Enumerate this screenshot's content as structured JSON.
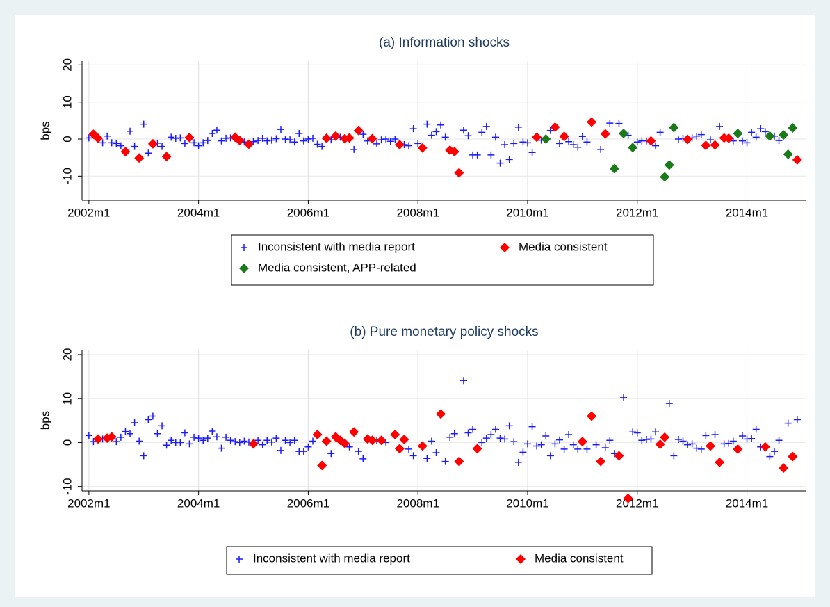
{
  "chart_data": [
    {
      "type": "scatter",
      "title": "(a) Information shocks",
      "y_label": "bps",
      "xlim": [
        502.5,
        661
      ],
      "ylim": [
        -16.5,
        21
      ],
      "xticks": [
        {
          "value": 504,
          "label": "2002m1"
        },
        {
          "value": 528,
          "label": "2004m1"
        },
        {
          "value": 552,
          "label": "2006m1"
        },
        {
          "value": 576,
          "label": "2008m1"
        },
        {
          "value": 600,
          "label": "2010m1"
        },
        {
          "value": 624,
          "label": "2012m1"
        },
        {
          "value": 648,
          "label": "2014m1"
        }
      ],
      "yticks": [
        -10,
        0,
        10,
        20
      ],
      "grid": true,
      "series": [
        {
          "name": "Inconsistent with media report",
          "color": "#1a1aff",
          "marker": "plus",
          "x": [
            504,
            507,
            508,
            509,
            510,
            511,
            513,
            514,
            516,
            517,
            519,
            520,
            522,
            523,
            524,
            525,
            527,
            528,
            529,
            530,
            531,
            532,
            533,
            534,
            535,
            538,
            540,
            541,
            542,
            543,
            544,
            545,
            546,
            547,
            548,
            549,
            550,
            551,
            552,
            553,
            554,
            555,
            557,
            559,
            562,
            564,
            565,
            567,
            568,
            569,
            570,
            571,
            573,
            574,
            575,
            576,
            578,
            579,
            580,
            581,
            582,
            586,
            587,
            588,
            589,
            590,
            591,
            592,
            593,
            594,
            595,
            596,
            597,
            598,
            599,
            600,
            601,
            603,
            605,
            607,
            609,
            610,
            611,
            612,
            613,
            616,
            618,
            620,
            622,
            624,
            625,
            626,
            628,
            629,
            633,
            634,
            636,
            637,
            638,
            640,
            642,
            645,
            647,
            648,
            649,
            650,
            651,
            652,
            654,
            655
          ],
          "values": [
            0.3,
            -1,
            0.8,
            -1,
            -1.2,
            -1.8,
            2.1,
            -2,
            4,
            -3.8,
            -1.1,
            -2,
            0.5,
            0.2,
            0.3,
            -1.2,
            -1,
            -1.8,
            -1,
            -0.4,
            1.5,
            2.4,
            -0.5,
            0.2,
            0.3,
            -0.8,
            -0.7,
            -0.4,
            0.2,
            -0.5,
            -0.3,
            0.1,
            2.6,
            0,
            -0.2,
            -0.8,
            1.5,
            -0.5,
            0,
            0.2,
            -1.4,
            -2,
            -0.2,
            0.5,
            -2.8,
            1.3,
            -0.5,
            -1.3,
            -0.2,
            0,
            -0.6,
            0,
            -1.5,
            -1.8,
            2.8,
            -1.2,
            4,
            1,
            2,
            3.8,
            0.5,
            2.4,
            0.9,
            -4.3,
            -4.3,
            1.8,
            3.4,
            -4.3,
            0.5,
            -6.5,
            -1.5,
            -5.5,
            -1.2,
            3.2,
            -0.8,
            -1,
            -3.6,
            -0.3,
            2.3,
            -1.2,
            -0.7,
            -1.5,
            -2.2,
            0.7,
            -0.8,
            -2.8,
            4.3,
            4.2,
            1,
            -0.8,
            -0.5,
            -0.5,
            -1.8,
            1.8,
            0,
            0.2,
            0.3,
            0.8,
            1.2,
            -0.2,
            3.4,
            -0.5,
            -0.5,
            -1,
            1.8,
            0.5,
            2.8,
            2,
            0.8,
            -0.4
          ]
        },
        {
          "name": "Media consistent",
          "color": "#ff0000",
          "marker": "diamond",
          "x": [
            505,
            506,
            512,
            515,
            518,
            521,
            526,
            536,
            537,
            539,
            556,
            558,
            560,
            561,
            563,
            566,
            572,
            577,
            583,
            584,
            585,
            602,
            606,
            608,
            614,
            617,
            627,
            635,
            639,
            641,
            643,
            644,
            659
          ],
          "values": [
            1.3,
            0.2,
            -3.4,
            -5.1,
            -1.3,
            -4.7,
            0.4,
            0.5,
            -0.4,
            -1.4,
            0.2,
            0.8,
            0.1,
            0.3,
            2.3,
            0.1,
            -1.5,
            -2.4,
            -3,
            -3.4,
            -9.1,
            0.5,
            3.2,
            0.7,
            4.6,
            1.4,
            -0.5,
            -0.1,
            -1.7,
            -1.6,
            0.3,
            0.2,
            -5.6
          ]
        },
        {
          "name": "Media consistent, APP-related",
          "color": "#1a7a1a",
          "marker": "diamond",
          "x": [
            604,
            619,
            621,
            623,
            630,
            631,
            632,
            646,
            653,
            656,
            657,
            658
          ],
          "values": [
            0,
            -8,
            1.5,
            -2.3,
            -10.2,
            -7,
            3.1,
            1.5,
            0.8,
            1.1,
            -4.1,
            3
          ]
        }
      ]
    },
    {
      "type": "scatter",
      "title": "(b) Pure monetary policy shocks",
      "y_label": "bps",
      "xlim": [
        502.5,
        661
      ],
      "ylim": [
        -11,
        21.1
      ],
      "xticks": [
        {
          "value": 504,
          "label": "2002m1"
        },
        {
          "value": 528,
          "label": "2004m1"
        },
        {
          "value": 552,
          "label": "2006m1"
        },
        {
          "value": 576,
          "label": "2008m1"
        },
        {
          "value": 600,
          "label": "2010m1"
        },
        {
          "value": 624,
          "label": "2012m1"
        },
        {
          "value": 648,
          "label": "2014m1"
        }
      ],
      "yticks": [
        -10,
        0,
        10,
        20
      ],
      "grid": true,
      "series": [
        {
          "name": "Inconsistent with media report",
          "color": "#1a1aff",
          "marker": "plus",
          "x": [
            504,
            505,
            507,
            510,
            511,
            512,
            513,
            514,
            515,
            516,
            517,
            518,
            519,
            520,
            521,
            522,
            523,
            524,
            525,
            526,
            527,
            528,
            529,
            530,
            531,
            532,
            533,
            534,
            535,
            536,
            537,
            538,
            539,
            541,
            542,
            543,
            544,
            545,
            546,
            547,
            548,
            549,
            550,
            551,
            552,
            553,
            557,
            561,
            563,
            564,
            567,
            569,
            574,
            575,
            578,
            579,
            580,
            582,
            583,
            584,
            586,
            587,
            588,
            590,
            591,
            592,
            593,
            594,
            595,
            596,
            597,
            598,
            599,
            600,
            601,
            602,
            603,
            604,
            605,
            606,
            607,
            608,
            609,
            610,
            611,
            613,
            615,
            617,
            618,
            619,
            621,
            623,
            624,
            625,
            626,
            627,
            628,
            631,
            632,
            633,
            634,
            635,
            636,
            637,
            638,
            639,
            641,
            643,
            644,
            645,
            647,
            648,
            649,
            650,
            651,
            653,
            654,
            655,
            657,
            659
          ],
          "values": [
            1.6,
            0.2,
            0.8,
            0.2,
            1.2,
            2.5,
            2,
            4.5,
            0.3,
            -3,
            5.2,
            6,
            2,
            3.8,
            -0.6,
            0.5,
            0,
            0,
            2.2,
            -0.3,
            1.2,
            1,
            0.5,
            1,
            2.6,
            1.3,
            -1.3,
            1.2,
            0.5,
            0.2,
            0,
            0.3,
            0.1,
            0.5,
            -0.5,
            0.5,
            0.1,
            1,
            -1.8,
            0.5,
            0,
            0.5,
            -2,
            -2,
            -1,
            0.3,
            -2.5,
            -1,
            -2,
            -3.7,
            0.5,
            0,
            -1.5,
            -3,
            -3.6,
            0.3,
            -2.3,
            -4.3,
            1.2,
            2,
            14.1,
            2.2,
            3,
            0,
            1,
            1.8,
            3,
            1,
            0.8,
            3.8,
            0.2,
            -4.5,
            -2.2,
            -0.3,
            3.6,
            -0.8,
            -0.5,
            1.5,
            -3,
            -0.3,
            0.6,
            -1.5,
            1.8,
            -0.5,
            -1.5,
            -1.5,
            -0.5,
            -1.2,
            0.5,
            -2.5,
            10.2,
            2.4,
            2.2,
            0.5,
            0.7,
            0.8,
            2.4,
            8.9,
            -3,
            0.7,
            0.3,
            -0.5,
            -0.3,
            -1.3,
            -1.5,
            1.6,
            1.8,
            -0.3,
            -0.2,
            0.3,
            1.5,
            0.8,
            0.9,
            3,
            -1,
            -3.2,
            -2,
            0.5,
            4.4,
            5.2
          ]
        },
        {
          "name": "Media consistent",
          "color": "#ff0000",
          "marker": "diamond",
          "x": [
            506,
            508,
            509,
            540,
            554,
            555,
            556,
            558,
            559,
            560,
            562,
            565,
            566,
            568,
            571,
            572,
            573,
            577,
            581,
            585,
            589,
            612,
            614,
            616,
            620,
            622,
            629,
            630,
            640,
            642,
            646,
            652,
            656,
            658
          ],
          "values": [
            0.8,
            1,
            1.3,
            -0.3,
            1.8,
            -5.2,
            0.3,
            1.3,
            0.5,
            -0.2,
            2.4,
            0.8,
            0.5,
            0.5,
            1.8,
            -1.4,
            0.7,
            -0.8,
            6.5,
            -4.3,
            -1.4,
            0.2,
            6,
            -4.3,
            -3,
            -12.7,
            -0.4,
            1.2,
            -0.8,
            -4.5,
            -1.5,
            -1,
            -5.8,
            -3.2
          ]
        }
      ]
    }
  ]
}
